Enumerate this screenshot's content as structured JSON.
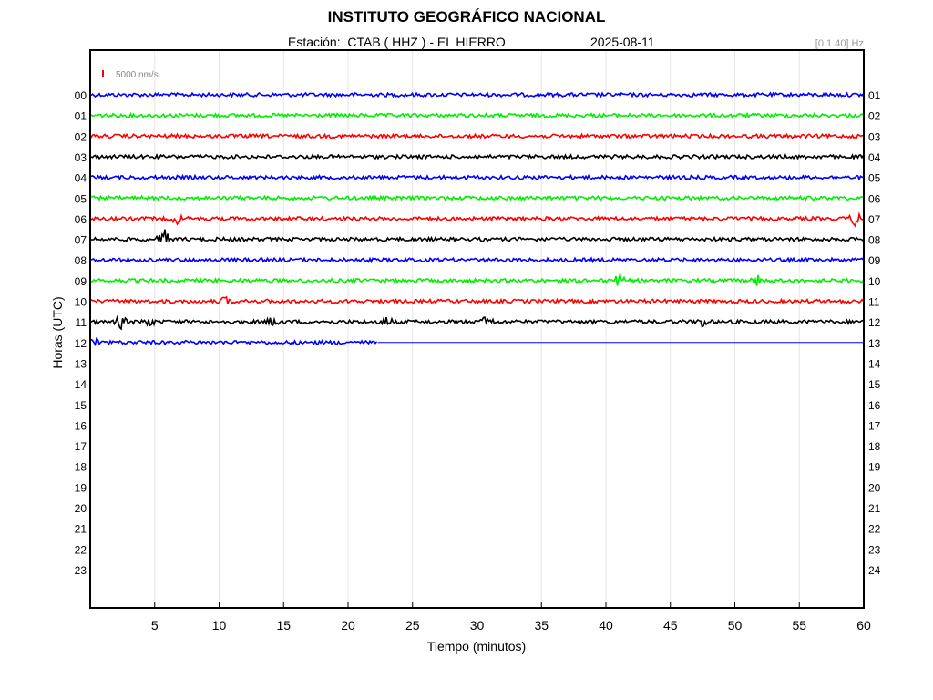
{
  "header": {
    "title": "INSTITUTO GEOGRÁFICO NACIONAL",
    "station_line": "Estación:  CTAB ( HHZ ) - EL HIERRO",
    "date": "2025-08-11",
    "filter": "[0.1 40] Hz"
  },
  "chart_data": {
    "type": "line",
    "title": "INSTITUTO GEOGRÁFICO NACIONAL",
    "xlabel": "Tiempo (minutos)",
    "ylabel": "Horas (UTC)",
    "xlim": [
      0,
      60
    ],
    "x_ticks": [
      5,
      10,
      15,
      20,
      25,
      30,
      35,
      40,
      45,
      50,
      55,
      60
    ],
    "left_hour_labels": [
      "00",
      "01",
      "02",
      "03",
      "04",
      "05",
      "06",
      "07",
      "08",
      "09",
      "10",
      "11",
      "12",
      "13",
      "14",
      "15",
      "16",
      "17",
      "18",
      "19",
      "20",
      "21",
      "22",
      "23"
    ],
    "right_hour_labels": [
      "01",
      "02",
      "03",
      "04",
      "05",
      "06",
      "07",
      "08",
      "09",
      "10",
      "11",
      "12",
      "13",
      "14",
      "15",
      "16",
      "17",
      "18",
      "19",
      "20",
      "21",
      "22",
      "23",
      "24"
    ],
    "scale_label": "5000 nm/s",
    "scale_color": "#ff0000",
    "grid": true,
    "series": [
      {
        "hour": "00",
        "color": "#0000ff",
        "end_minute": 60
      },
      {
        "hour": "01",
        "color": "#00ee00",
        "end_minute": 60
      },
      {
        "hour": "02",
        "color": "#ff0000",
        "end_minute": 60
      },
      {
        "hour": "03",
        "color": "#000000",
        "end_minute": 60
      },
      {
        "hour": "04",
        "color": "#0000ff",
        "end_minute": 60
      },
      {
        "hour": "05",
        "color": "#00ee00",
        "end_minute": 60
      },
      {
        "hour": "06",
        "color": "#ff0000",
        "end_minute": 60
      },
      {
        "hour": "07",
        "color": "#000000",
        "end_minute": 60
      },
      {
        "hour": "08",
        "color": "#0000ff",
        "end_minute": 60
      },
      {
        "hour": "09",
        "color": "#00ee00",
        "end_minute": 60
      },
      {
        "hour": "10",
        "color": "#ff0000",
        "end_minute": 60
      },
      {
        "hour": "11",
        "color": "#000000",
        "end_minute": 60
      },
      {
        "hour": "12",
        "color": "#0000ff",
        "end_minute": 22.3
      }
    ],
    "events": [
      {
        "hour": "06",
        "minute": 6.8,
        "amp": 0.4
      },
      {
        "hour": "06",
        "minute": 59.3,
        "amp": 0.6
      },
      {
        "hour": "07",
        "minute": 5.7,
        "amp": 0.9
      },
      {
        "hour": "09",
        "minute": 41,
        "amp": 0.5
      },
      {
        "hour": "09",
        "minute": 51.8,
        "amp": 0.4
      },
      {
        "hour": "10",
        "minute": 10.5,
        "amp": 0.35
      },
      {
        "hour": "11",
        "minute": 2.4,
        "amp": 0.5
      },
      {
        "hour": "11",
        "minute": 4.5,
        "amp": 0.4
      },
      {
        "hour": "11",
        "minute": 14.2,
        "amp": 0.45
      },
      {
        "hour": "11",
        "minute": 23,
        "amp": 0.4
      },
      {
        "hour": "11",
        "minute": 30.8,
        "amp": 0.6
      },
      {
        "hour": "11",
        "minute": 47.5,
        "amp": 0.45
      },
      {
        "hour": "12",
        "minute": 0.3,
        "amp": 0.5
      }
    ]
  }
}
